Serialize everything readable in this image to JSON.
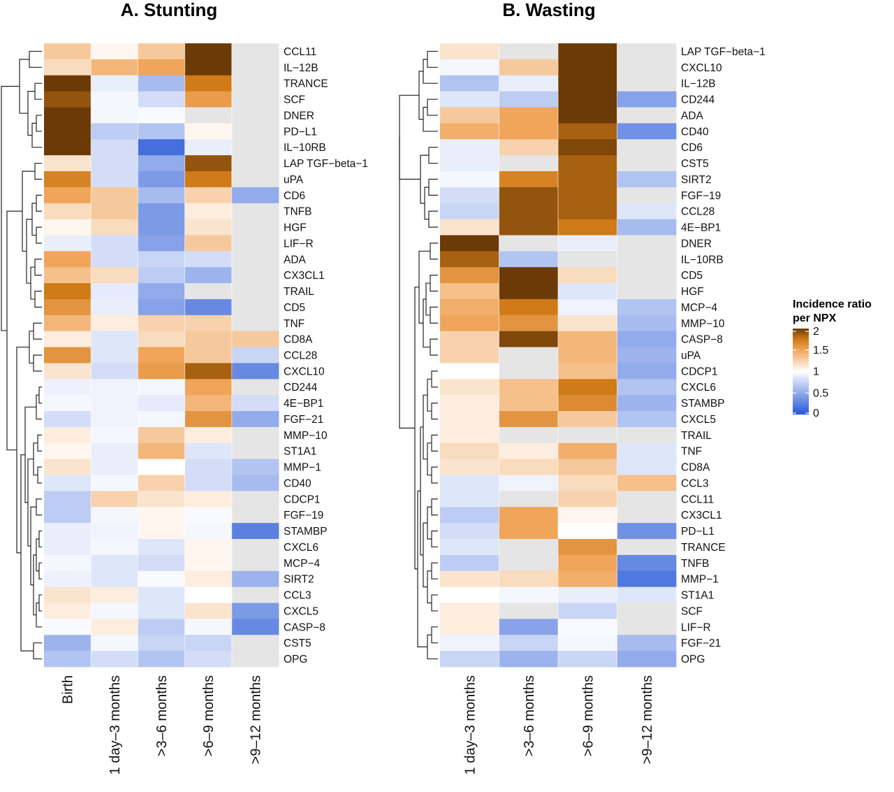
{
  "chart_data": [
    {
      "type": "heatmap",
      "title": "A. Stunting",
      "columns": [
        "Birth",
        "1 day–3 months",
        ">3–6 months",
        ">6–9 months",
        ">9–12 months"
      ],
      "rows": [
        "CCL11",
        "IL−12B",
        "TRANCE",
        "SCF",
        "DNER",
        "PD−L1",
        "IL−10RB",
        "LAP TGF−beta−1",
        "uPA",
        "CD6",
        "TNFB",
        "HGF",
        "LIF−R",
        "ADA",
        "CX3CL1",
        "TRAIL",
        "CD5",
        "TNF",
        "CD8A",
        "CCL28",
        "CXCL10",
        "CD244",
        "4E−BP1",
        "FGF−21",
        "MMP−10",
        "ST1A1",
        "MMP−1",
        "CD40",
        "CDCP1",
        "FGF−19",
        "STAMBP",
        "CXCL6",
        "MCP−4",
        "SIRT2",
        "CCL3",
        "CXCL5",
        "CASP−8",
        "CST5",
        "OPG"
      ],
      "values": [
        [
          1.3,
          1.05,
          1.3,
          2.0,
          null
        ],
        [
          1.2,
          1.4,
          1.5,
          2.0,
          null
        ],
        [
          2.0,
          0.9,
          0.6,
          1.75,
          null
        ],
        [
          1.9,
          0.95,
          0.8,
          1.55,
          null
        ],
        [
          2.0,
          0.95,
          0.97,
          null,
          null
        ],
        [
          2.0,
          0.7,
          0.65,
          1.05,
          null
        ],
        [
          2.0,
          0.8,
          0.15,
          0.9,
          null
        ],
        [
          1.15,
          0.8,
          0.5,
          1.9,
          null
        ],
        [
          1.7,
          0.8,
          0.4,
          1.75,
          null
        ],
        [
          1.5,
          1.3,
          0.6,
          1.25,
          0.5
        ],
        [
          1.2,
          1.3,
          0.4,
          1.1,
          null
        ],
        [
          1.05,
          1.2,
          0.4,
          1.15,
          null
        ],
        [
          0.9,
          0.8,
          0.45,
          1.3,
          null
        ],
        [
          1.5,
          0.8,
          0.75,
          0.8,
          null
        ],
        [
          1.35,
          1.2,
          0.7,
          0.55,
          null
        ],
        [
          1.75,
          0.88,
          0.5,
          null,
          null
        ],
        [
          1.6,
          0.9,
          0.45,
          0.3,
          null
        ],
        [
          1.4,
          1.1,
          1.25,
          1.25,
          null
        ],
        [
          1.1,
          0.85,
          1.2,
          1.3,
          1.3
        ],
        [
          1.6,
          0.85,
          1.5,
          1.3,
          0.75
        ],
        [
          1.15,
          0.8,
          1.55,
          1.85,
          0.3
        ],
        [
          0.92,
          0.93,
          0.95,
          1.5,
          null
        ],
        [
          0.95,
          0.93,
          0.88,
          1.4,
          0.8
        ],
        [
          0.8,
          0.93,
          0.95,
          1.6,
          0.5
        ],
        [
          1.1,
          0.95,
          1.3,
          1.1,
          null
        ],
        [
          1.05,
          0.9,
          1.4,
          0.85,
          null
        ],
        [
          1.15,
          0.9,
          1.0,
          0.8,
          0.65
        ],
        [
          0.85,
          0.95,
          1.25,
          0.8,
          0.6
        ],
        [
          0.7,
          1.25,
          1.15,
          1.1,
          null
        ],
        [
          0.7,
          0.95,
          1.05,
          0.97,
          null
        ],
        [
          0.9,
          0.93,
          1.05,
          0.95,
          0.25
        ],
        [
          0.9,
          0.95,
          0.85,
          1.05,
          null
        ],
        [
          0.95,
          0.85,
          0.8,
          1.05,
          null
        ],
        [
          0.92,
          0.85,
          0.97,
          1.1,
          0.55
        ],
        [
          1.15,
          1.1,
          0.85,
          1.0,
          null
        ],
        [
          1.1,
          0.95,
          0.85,
          1.15,
          0.4
        ],
        [
          0.97,
          1.1,
          0.7,
          0.95,
          0.3
        ],
        [
          0.55,
          0.95,
          0.75,
          0.75,
          null
        ],
        [
          0.65,
          0.8,
          0.65,
          0.8,
          null
        ]
      ]
    },
    {
      "type": "heatmap",
      "title": "B. Wasting",
      "columns": [
        "1 day–3 months",
        ">3–6 months",
        ">6–9 months",
        ">9–12 months"
      ],
      "rows": [
        "LAP TGF−beta−1",
        "CXCL10",
        "IL−12B",
        "CD244",
        "ADA",
        "CD40",
        "CD6",
        "CST5",
        "SIRT2",
        "FGF−19",
        "CCL28",
        "4E−BP1",
        "DNER",
        "IL−10RB",
        "CD5",
        "HGF",
        "MCP−4",
        "MMP−10",
        "CASP−8",
        "uPA",
        "CDCP1",
        "CXCL6",
        "STAMBP",
        "CXCL5",
        "TRAIL",
        "TNF",
        "CD8A",
        "CCL3",
        "CCL11",
        "CX3CL1",
        "PD−L1",
        "TRANCE",
        "TNFB",
        "MMP−1",
        "ST1A1",
        "SCF",
        "LIF−R",
        "FGF−21",
        "OPG"
      ],
      "values": [
        [
          1.15,
          null,
          2.0,
          null
        ],
        [
          0.95,
          1.3,
          2.0,
          null
        ],
        [
          0.65,
          0.9,
          2.0,
          null
        ],
        [
          0.85,
          0.7,
          2.0,
          0.45
        ],
        [
          1.3,
          1.5,
          2.0,
          null
        ],
        [
          1.45,
          1.5,
          1.85,
          0.35
        ],
        [
          0.9,
          1.25,
          1.95,
          null
        ],
        [
          0.9,
          null,
          1.85,
          null
        ],
        [
          0.95,
          1.7,
          1.85,
          0.65
        ],
        [
          0.8,
          1.9,
          1.85,
          null
        ],
        [
          0.75,
          1.9,
          1.85,
          0.85
        ],
        [
          1.15,
          1.9,
          1.75,
          0.6
        ],
        [
          2.0,
          null,
          0.9,
          null
        ],
        [
          1.85,
          0.65,
          null,
          null
        ],
        [
          1.6,
          2.0,
          1.2,
          null
        ],
        [
          1.35,
          2.0,
          0.85,
          null
        ],
        [
          1.45,
          1.75,
          0.93,
          0.65
        ],
        [
          1.5,
          1.6,
          1.15,
          0.6
        ],
        [
          1.25,
          1.95,
          1.4,
          0.5
        ],
        [
          1.25,
          null,
          1.4,
          0.55
        ],
        [
          1.0,
          null,
          1.35,
          0.5
        ],
        [
          1.15,
          1.35,
          1.75,
          0.65
        ],
        [
          1.1,
          1.35,
          1.65,
          0.55
        ],
        [
          1.1,
          1.6,
          1.3,
          0.65
        ],
        [
          1.1,
          null,
          null,
          null
        ],
        [
          1.2,
          1.1,
          1.45,
          0.85
        ],
        [
          1.15,
          1.2,
          1.3,
          0.85
        ],
        [
          0.85,
          0.93,
          1.2,
          1.35
        ],
        [
          0.85,
          null,
          1.25,
          null
        ],
        [
          0.7,
          1.5,
          1.05,
          null
        ],
        [
          0.8,
          1.5,
          1.0,
          0.35
        ],
        [
          0.85,
          null,
          1.6,
          null
        ],
        [
          0.7,
          null,
          1.5,
          0.3
        ],
        [
          1.15,
          1.2,
          1.45,
          0.2
        ],
        [
          1.0,
          0.95,
          0.9,
          0.85
        ],
        [
          1.1,
          null,
          0.75,
          null
        ],
        [
          1.1,
          0.45,
          0.97,
          null
        ],
        [
          0.93,
          0.75,
          0.95,
          0.6
        ],
        [
          0.75,
          0.55,
          0.75,
          0.5
        ]
      ]
    }
  ],
  "legend": {
    "title_line1": "Incidence ratio",
    "title_line2": "per NPX",
    "ticks": [
      "2",
      "1.5",
      "1",
      "0.5",
      "0"
    ],
    "tick_values": [
      2,
      1.5,
      1,
      0.5,
      0
    ]
  },
  "colors": {
    "low": "#2456d6",
    "mid": "#ffffff",
    "high_1_5": "#f0a55a",
    "high_1_75": "#d07a18",
    "high": "#6b3a06",
    "na": "#e5e5e5"
  }
}
